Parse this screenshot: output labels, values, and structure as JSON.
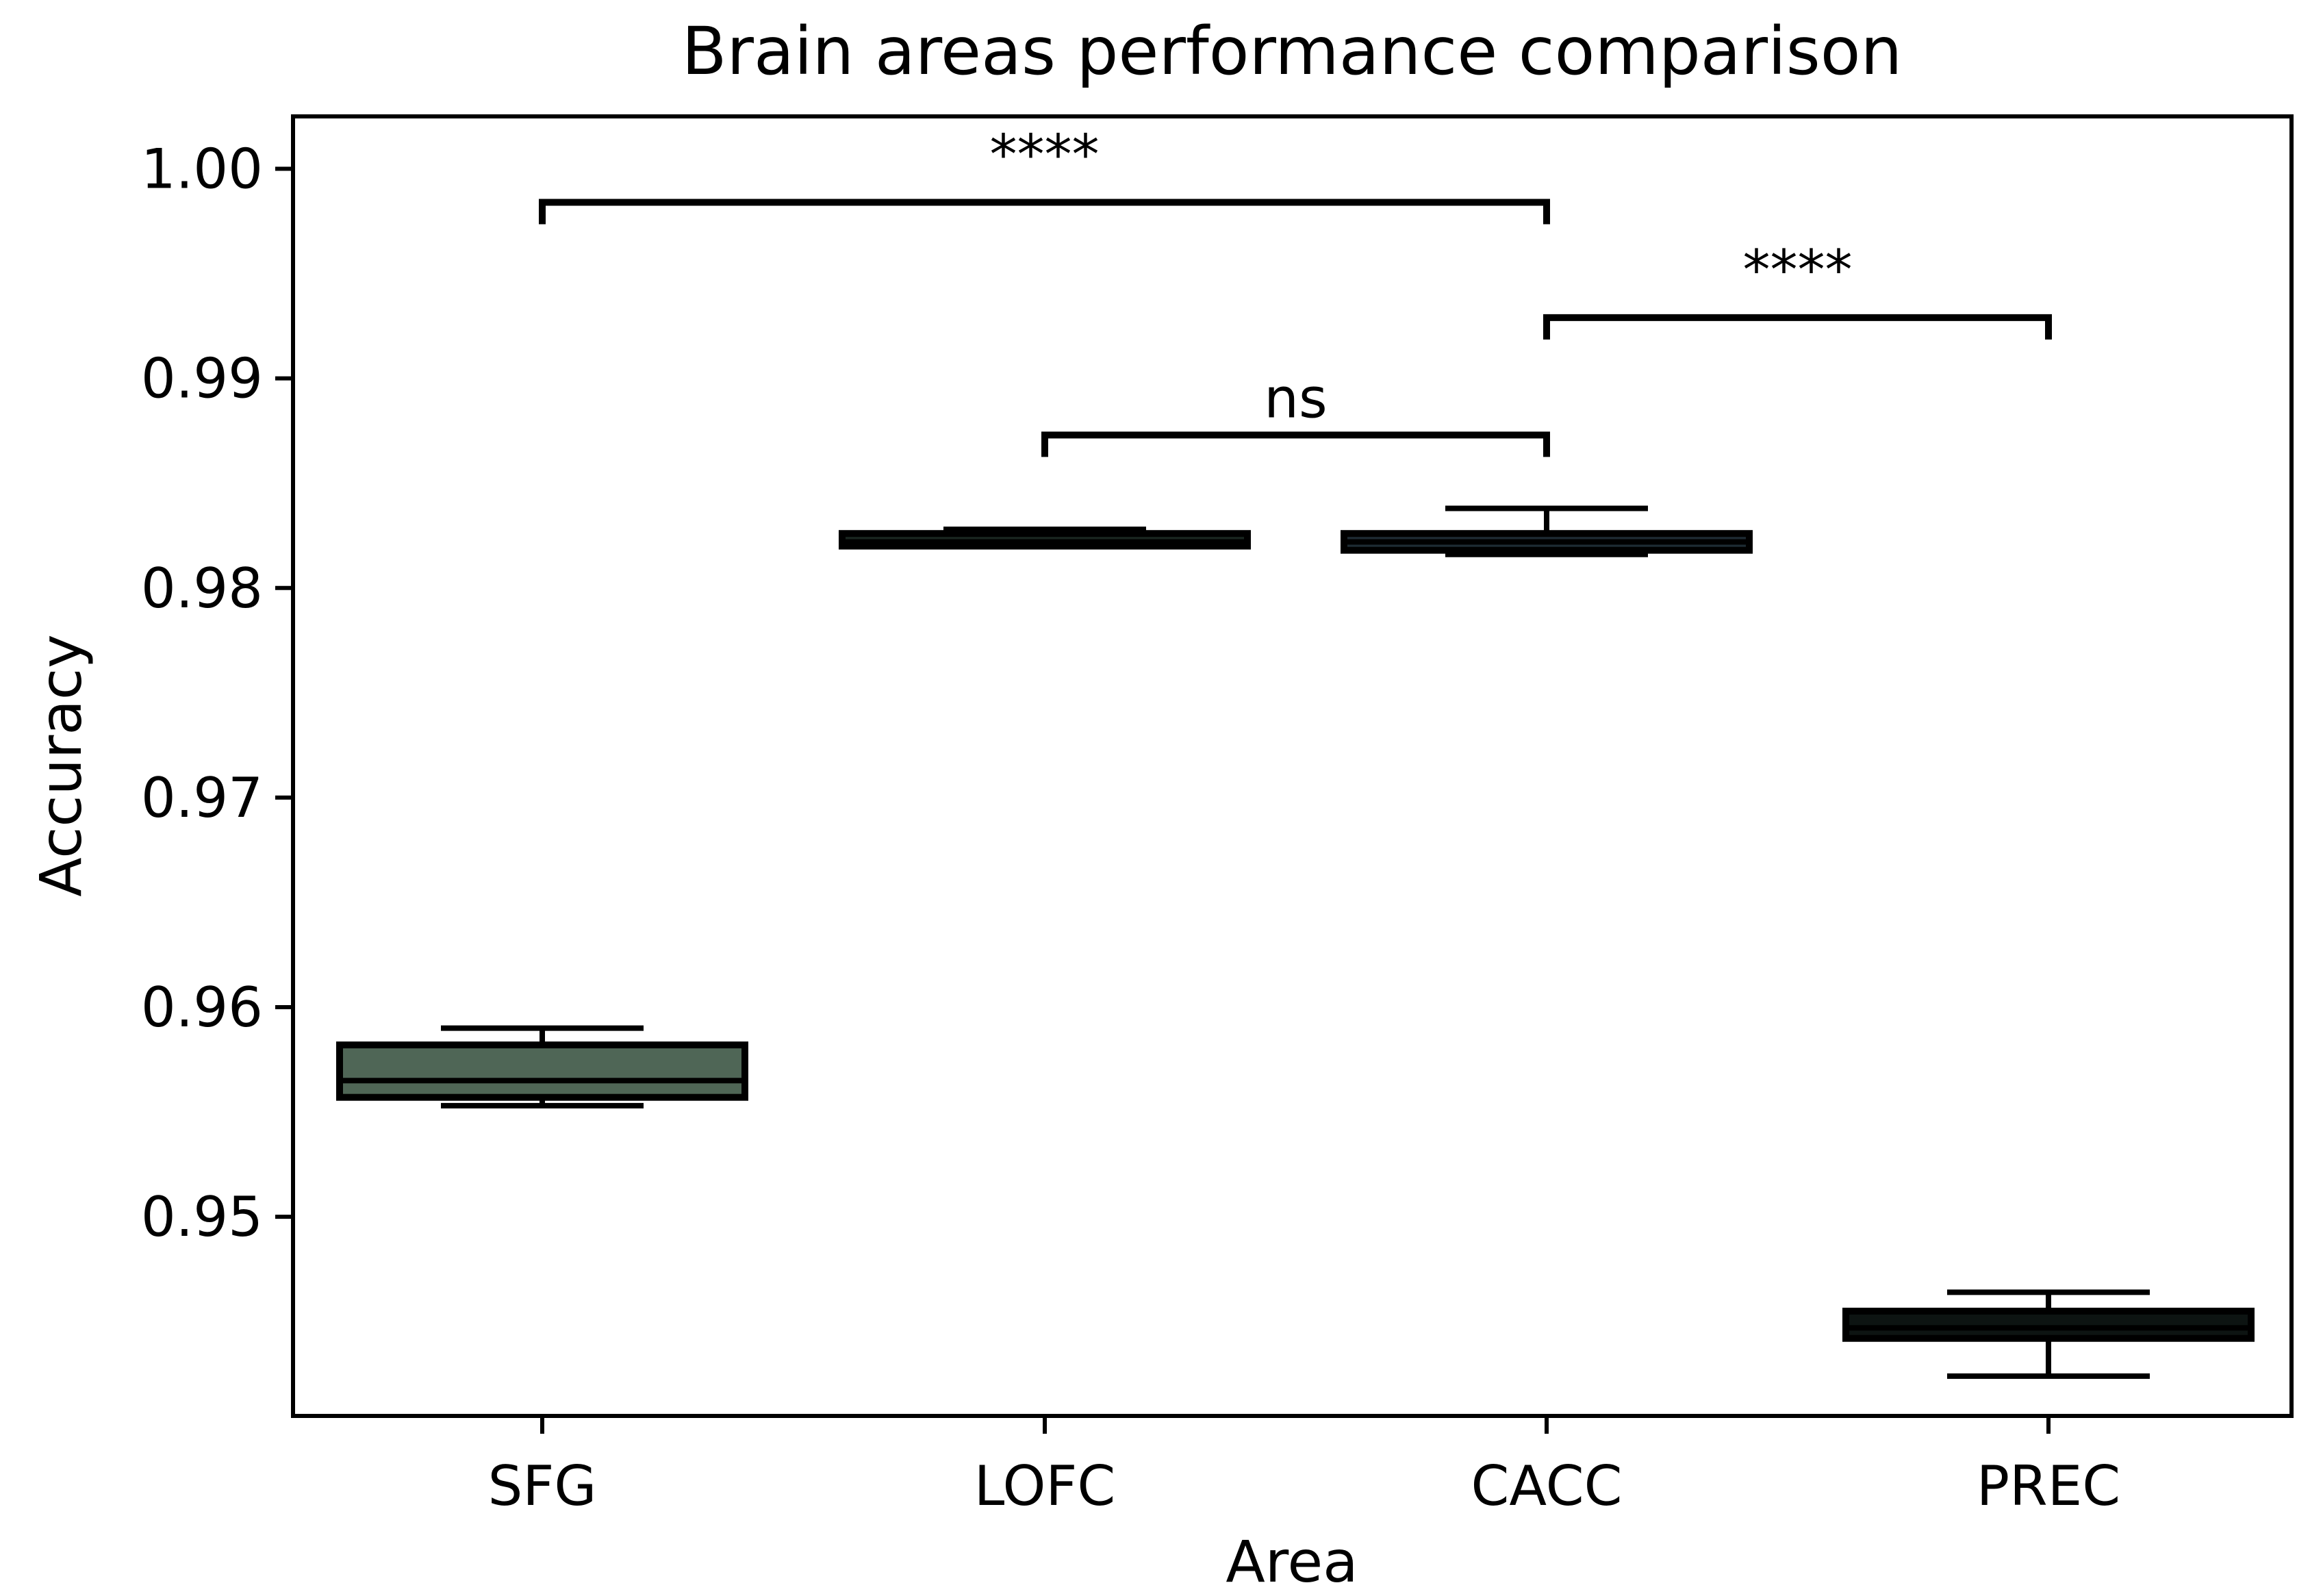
{
  "chart_data": {
    "type": "boxplot",
    "title": "Brain areas performance comparison",
    "xlabel": "Area",
    "ylabel": "Accuracy",
    "ylim": [
      0.9405,
      1.0025
    ],
    "yticks": [
      0.95,
      0.96,
      0.97,
      0.98,
      0.99,
      1.0
    ],
    "ytick_labels": [
      "0.95",
      "0.96",
      "0.97",
      "0.98",
      "0.99",
      "1.00"
    ],
    "categories": [
      "SFG",
      "LOFC",
      "CACC",
      "PREC"
    ],
    "boxes": [
      {
        "name": "SFG",
        "whisker_low": 0.9553,
        "q1": 0.9557,
        "median": 0.9565,
        "q3": 0.9582,
        "whisker_high": 0.959,
        "color": "#4f6656"
      },
      {
        "name": "LOFC",
        "whisker_low": 0.982,
        "q1": 0.982,
        "median": 0.9822,
        "q3": 0.9826,
        "whisker_high": 0.9828,
        "color": "#1a2620"
      },
      {
        "name": "CACC",
        "whisker_low": 0.9816,
        "q1": 0.9818,
        "median": 0.9822,
        "q3": 0.9826,
        "whisker_high": 0.9838,
        "color": "#1e2b33"
      },
      {
        "name": "PREC",
        "whisker_low": 0.9424,
        "q1": 0.9442,
        "median": 0.9447,
        "q3": 0.9455,
        "whisker_high": 0.9464,
        "color": "#0d1412"
      }
    ],
    "annotations": [
      {
        "from": "SFG",
        "to": "CACC",
        "y": 0.9984,
        "label": "****"
      },
      {
        "from": "CACC",
        "to": "PREC",
        "y": 0.9929,
        "label": "****"
      },
      {
        "from": "LOFC",
        "to": "CACC",
        "y": 0.9873,
        "label": "ns"
      }
    ],
    "grid": false,
    "colors": {
      "axis": "#000000",
      "text": "#000000",
      "background": "#ffffff"
    }
  }
}
